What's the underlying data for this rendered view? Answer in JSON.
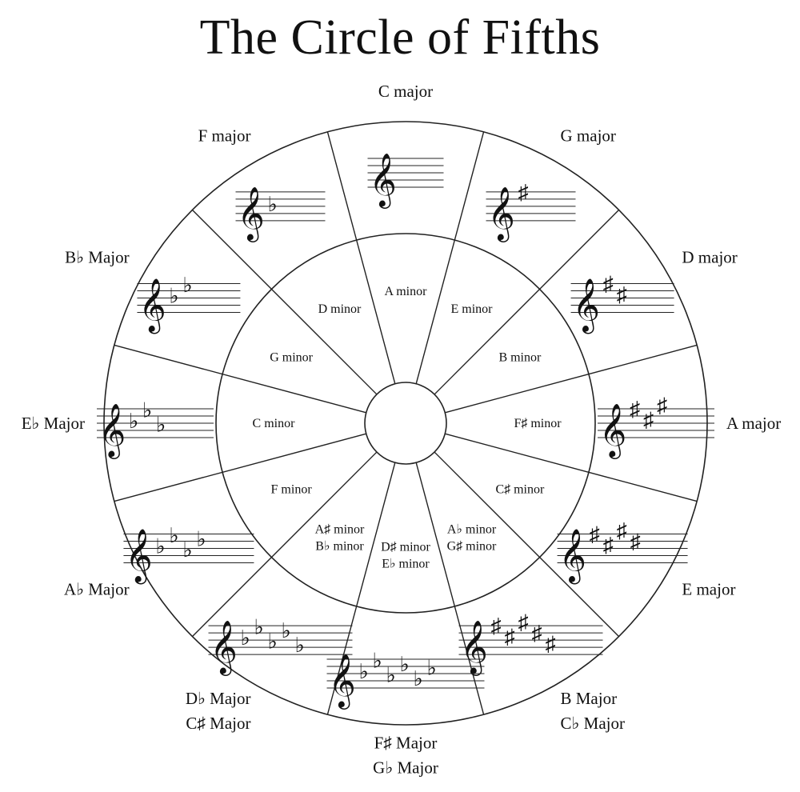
{
  "title": "The Circle of Fifths",
  "keys": [
    {
      "major": [
        "C major"
      ],
      "minor": [
        "A minor"
      ],
      "accidental": "",
      "count": 0
    },
    {
      "major": [
        "G major"
      ],
      "minor": [
        "E minor"
      ],
      "accidental": "♯",
      "count": 1
    },
    {
      "major": [
        "D major"
      ],
      "minor": [
        "B minor"
      ],
      "accidental": "♯",
      "count": 2
    },
    {
      "major": [
        "A major"
      ],
      "minor": [
        "F♯ minor"
      ],
      "accidental": "♯",
      "count": 3
    },
    {
      "major": [
        "E major"
      ],
      "minor": [
        "C♯ minor"
      ],
      "accidental": "♯",
      "count": 4
    },
    {
      "major": [
        "B Major",
        "C♭ Major"
      ],
      "minor": [
        "A♭ minor",
        "G♯ minor"
      ],
      "accidental": "♯",
      "count": 5
    },
    {
      "major": [
        "F♯ Major",
        "G♭ Major"
      ],
      "minor": [
        "D♯ minor",
        "E♭ minor"
      ],
      "accidental": "♭",
      "count": 6
    },
    {
      "major": [
        "D♭ Major",
        "C♯ Major"
      ],
      "minor": [
        "A♯ minor",
        "B♭ minor"
      ],
      "accidental": "♭",
      "count": 5
    },
    {
      "major": [
        "A♭ Major"
      ],
      "minor": [
        "F minor"
      ],
      "accidental": "♭",
      "count": 4
    },
    {
      "major": [
        "E♭ Major"
      ],
      "minor": [
        "C minor"
      ],
      "accidental": "♭",
      "count": 3
    },
    {
      "major": [
        "B♭ Major"
      ],
      "minor": [
        "G minor"
      ],
      "accidental": "♭",
      "count": 2
    },
    {
      "major": [
        "F major"
      ],
      "minor": [
        "D minor"
      ],
      "accidental": "♭",
      "count": 1
    }
  ],
  "colors": {
    "line": "#222222",
    "background": "#ffffff"
  }
}
